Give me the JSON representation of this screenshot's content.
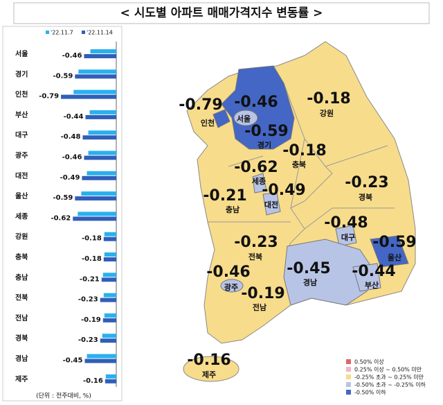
{
  "chart_data": {
    "type": "hbar",
    "title": "< 시도별 아파트 매매가격지수 변동률 >",
    "categories": [
      "서울",
      "경기",
      "인천",
      "부산",
      "대구",
      "광주",
      "대전",
      "울산",
      "세종",
      "강원",
      "충북",
      "충남",
      "전북",
      "전남",
      "경북",
      "경남",
      "제주"
    ],
    "series": [
      {
        "name": "'22.11.7",
        "color": "#2ab0ee",
        "values": [
          -0.37,
          -0.54,
          -0.61,
          -0.38,
          -0.4,
          -0.4,
          -0.42,
          -0.5,
          -0.55,
          -0.17,
          -0.17,
          -0.19,
          -0.18,
          -0.17,
          -0.2,
          -0.42,
          -0.15
        ]
      },
      {
        "name": "'22.11.14",
        "color": "#2f5fb8",
        "values": [
          -0.46,
          -0.59,
          -0.79,
          -0.44,
          -0.48,
          -0.46,
          -0.49,
          -0.59,
          -0.62,
          -0.18,
          -0.18,
          -0.21,
          -0.23,
          -0.19,
          -0.23,
          -0.45,
          -0.16
        ]
      }
    ],
    "xlim": [
      -0.85,
      0
    ],
    "note": "(단위 : 전주대비, %)",
    "map_legend": [
      {
        "label": "0.50% 이상",
        "color": "#e06666"
      },
      {
        "label": "0.25% 이상 ~ 0.50% 미만",
        "color": "#f4b6c2"
      },
      {
        "label": "-0.25% 초과 ~ 0.25% 미만",
        "color": "#f7dc8c"
      },
      {
        "label": "-0.50% 초과 ~ -0.25% 이하",
        "color": "#b8c4e6"
      },
      {
        "label": "-0.50% 이하",
        "color": "#4466c4"
      }
    ]
  }
}
